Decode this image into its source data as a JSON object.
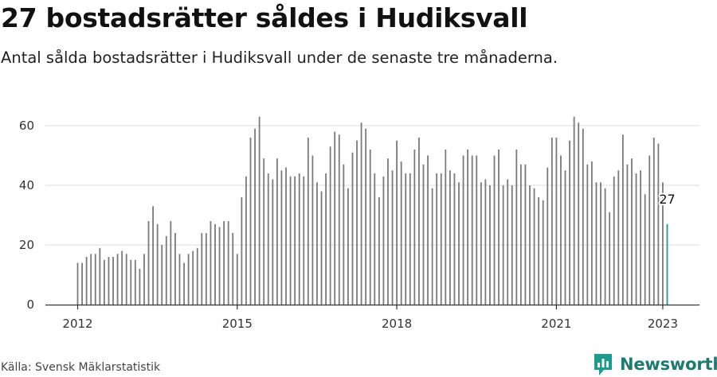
{
  "title": "27 bostadsrätter såldes i Hudiksvall",
  "subtitle": "Antal sålda bostadsrätter i Hudiksvall under de senaste tre månaderna.",
  "source": "Källa: Svensk Mäklarstatistik",
  "brand": {
    "name": "Newsworthy",
    "icon": "newsworthy-logo-icon"
  },
  "colors": {
    "bar": "#7a7a7a",
    "highlight": "#1d9b8f",
    "brand": "#1d7a71",
    "grid": "#dddddd"
  },
  "chart_data": {
    "type": "bar",
    "x_start": "2012-01",
    "x_end": "2023-01",
    "x_ticks": [
      {
        "value": "2012-01",
        "label": "2012"
      },
      {
        "value": "2015-01",
        "label": "2015"
      },
      {
        "value": "2018-01",
        "label": "2018"
      },
      {
        "value": "2021-01",
        "label": "2021"
      },
      {
        "value": "2023-01",
        "label": "2023"
      }
    ],
    "y_ticks": [
      0,
      20,
      40,
      60
    ],
    "ylim": [
      0,
      70
    ],
    "grid": true,
    "values": [
      14,
      14,
      16,
      17,
      17,
      19,
      15,
      16,
      16,
      17,
      18,
      17,
      15,
      15,
      12,
      17,
      28,
      33,
      27,
      20,
      23,
      28,
      24,
      17,
      14,
      17,
      18,
      19,
      24,
      24,
      28,
      27,
      26,
      28,
      28,
      24,
      17,
      36,
      43,
      56,
      59,
      63,
      49,
      44,
      42,
      49,
      45,
      46,
      43,
      43,
      44,
      43,
      56,
      50,
      41,
      38,
      44,
      53,
      58,
      57,
      47,
      39,
      51,
      55,
      61,
      59,
      52,
      44,
      36,
      43,
      49,
      45,
      55,
      48,
      44,
      44,
      52,
      56,
      47,
      50,
      39,
      44,
      44,
      52,
      45,
      44,
      41,
      50,
      52,
      50,
      50,
      41,
      42,
      40,
      50,
      52,
      40,
      42,
      40,
      52,
      47,
      47,
      40,
      39,
      36,
      35,
      46,
      56,
      56,
      50,
      45,
      55,
      63,
      61,
      59,
      47,
      48,
      41,
      41,
      39,
      31,
      43,
      45,
      57,
      47,
      49,
      44,
      45,
      37,
      50,
      56,
      54,
      41,
      27
    ],
    "highlight": {
      "value": 27,
      "label": "27"
    }
  }
}
